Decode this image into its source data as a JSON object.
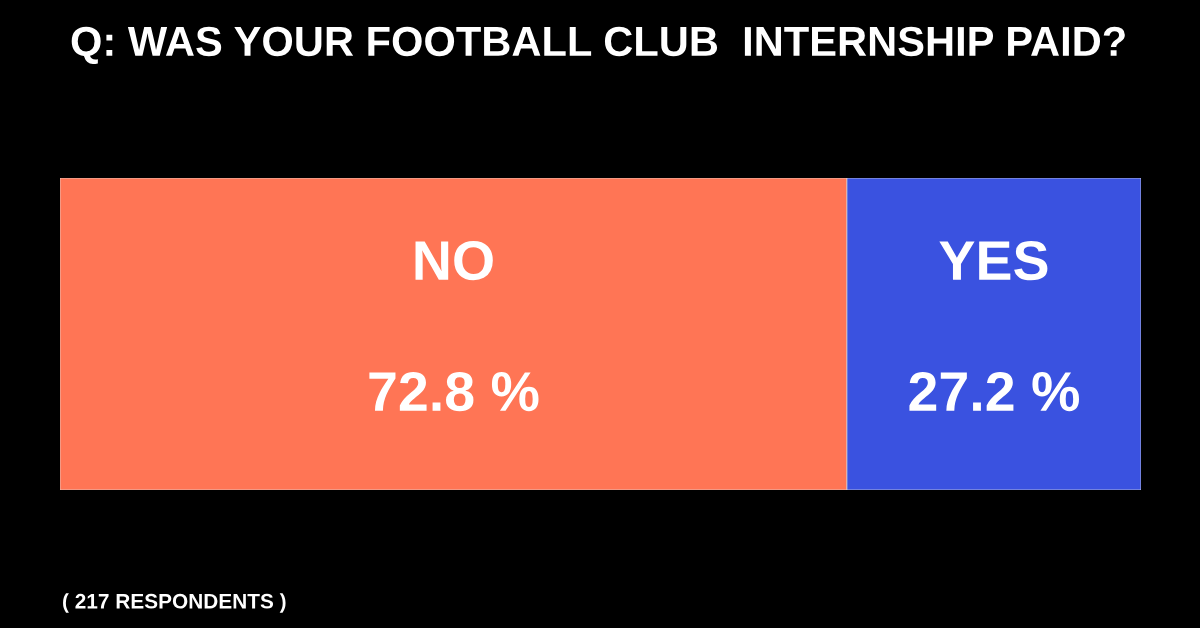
{
  "chart_data": {
    "type": "bar",
    "title": "Q: WAS YOUR FOOTBALL CLUB  INTERNSHIP PAID?",
    "stacked": true,
    "orientation": "horizontal",
    "categories": [
      null
    ],
    "xlim": [
      0,
      100
    ],
    "legend": false,
    "series": [
      {
        "name": "NO",
        "color": "#ff7555",
        "values": [
          72.8
        ],
        "value_labels": [
          "72.8 %"
        ]
      },
      {
        "name": "YES",
        "color": "#3a52e0",
        "values": [
          27.2
        ],
        "value_labels": [
          "27.2 %"
        ]
      }
    ],
    "annotations": [
      "( 217 RESPONDENTS )"
    ]
  }
}
